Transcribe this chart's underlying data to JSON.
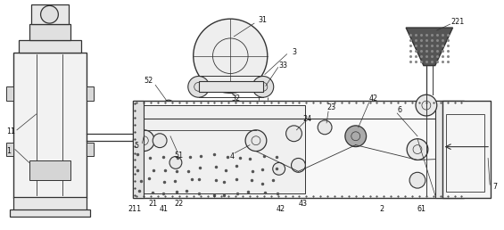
{
  "bg_color": "#ffffff",
  "line_color": "#333333",
  "lw": 0.8,
  "fig_w": 5.65,
  "fig_h": 2.58,
  "dpi": 100
}
